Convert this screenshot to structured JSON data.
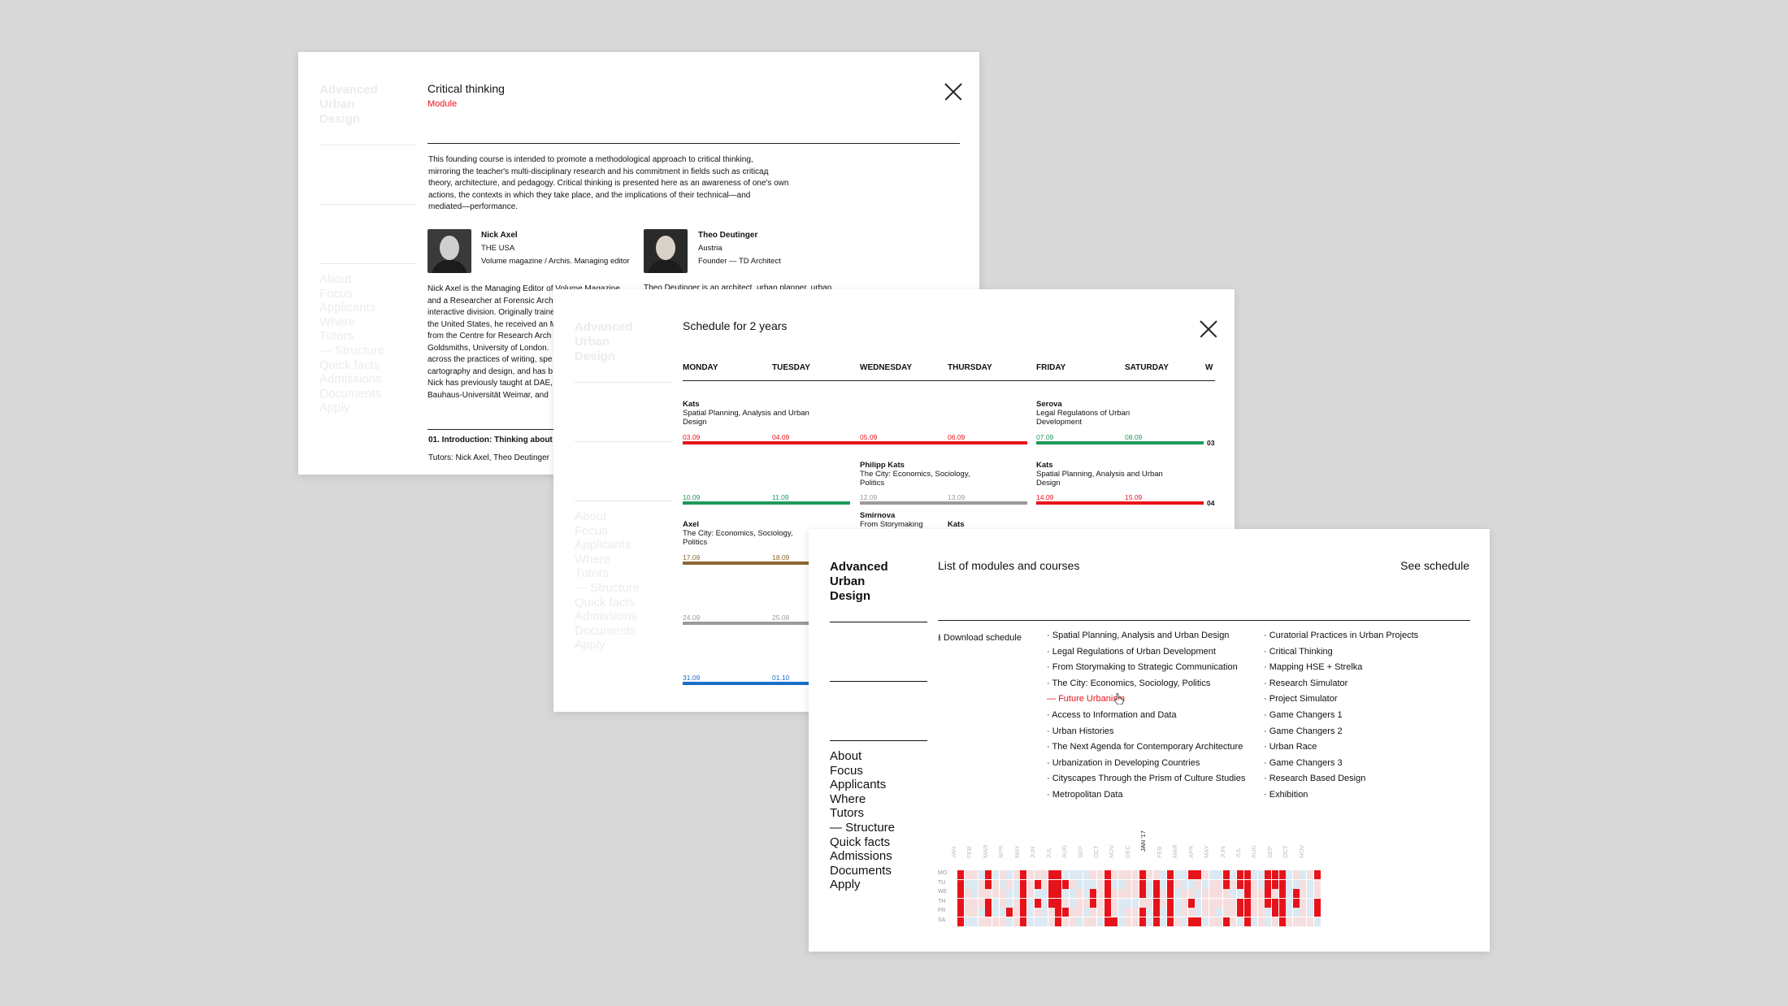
{
  "site": {
    "brand_line1": "Advanced",
    "brand_line2": "Urban",
    "brand_line3": "Design"
  },
  "nav": [
    "About",
    "Focus",
    "Applicants",
    "Where",
    "Tutors",
    "— Structure",
    "Quick facts",
    "Admissions",
    "Documents",
    "Apply"
  ],
  "module_window": {
    "title": "Critical thinking",
    "type": "Module",
    "description": [
      "This founding course is intended to promote a methodological approach to critical thinking,",
      "mirroring the teacher's multi-disciplinary research and his commitment in fields such as criticад",
      "theory, architecture, and pedagogy. Critical thinking is presented here as an awareness of one's own",
      "actions, the contexts in which they take place, and the implications of their technical—and",
      "mediated—performance."
    ],
    "tutors": [
      {
        "name": "Nick Axel",
        "country": "THE USA",
        "role": "Volume magazine / Archis. Managing editor",
        "bio": [
          "Nick Axel is the Managing Editor of Volume Magazine",
          "and a Researcher at Forensic Arch",
          "interactive division. Originally traine",
          "the United States, he received an M",
          "from the Centre for Research Arch",
          "Goldsmiths, University of London. ",
          "across the practices of writing, spe",
          "cartography and design, and has b",
          "Nick has previously taught at DAE,",
          "Bauhaus-Universität Weimar, and"
        ]
      },
      {
        "name": "Theo Deutinger",
        "country": "Austria",
        "role": "Founder — TD Architect",
        "bio": [
          "Theo Deutinger is an architect, urban planner, urban"
        ]
      }
    ],
    "section_title": "01. Introduction: Thinking about",
    "section_tutors": "Tutors: Nick Axel, Theo Deutinger"
  },
  "schedule_window": {
    "title": "Schedule for 2 years",
    "days": [
      "MONDAY",
      "TUESDAY",
      "WEDNESDAY",
      "THURSDAY",
      "FRIDAY",
      "SATURDAY",
      "W"
    ],
    "events": [
      {
        "tutor": "Kats",
        "course": "Spatial Planning, Analysis and Urban Design",
        "dates": [
          "03.09",
          "04.09",
          "05.09",
          "06.09"
        ],
        "color": "#e8121a"
      },
      {
        "tutor": "Serova",
        "course": "Legal Regulations of Urban Development",
        "dates": [
          "07.09",
          "08.09"
        ],
        "color": "#1e9a5a",
        "week": "03"
      },
      {
        "tutor": "Philipp Kats",
        "course": "The City: Economics, Sociology, Politics",
        "dates": [
          "10.09",
          "11.09",
          "12.09",
          "13.09"
        ],
        "color": "#1e9a5a"
      },
      {
        "tutor": "Kats",
        "course": "Spatial Planning, Analysis and Urban Design",
        "dates": [
          "14.09",
          "15.09"
        ],
        "color": "#e8121a",
        "week": "04"
      },
      {
        "tutor": "Axel",
        "course": "The City: Economics, Sociology, Politics",
        "dates": [
          "17.09",
          "18.09"
        ],
        "color": "#8b6a2e"
      },
      {
        "tutor": "Smirnova",
        "course": "From Storymaking",
        "dates": []
      },
      {
        "tutor": "Kats",
        "course": "",
        "dates": []
      },
      {
        "tutor": "",
        "course": "",
        "dates": [
          "24.09",
          "25.09"
        ],
        "color": "#9a9a9a"
      },
      {
        "tutor": "",
        "course": "",
        "dates": [
          "31.09",
          "01.10"
        ],
        "color": "#1a6fc4"
      }
    ]
  },
  "list_window": {
    "title": "List of modules and courses",
    "see_schedule": "See schedule",
    "download": "Download schedule",
    "modules_col1": [
      "Spatial Planning, Analysis and Urban Design",
      "Legal Regulations of Urban Development",
      "From Storymaking to Strategic Communication",
      "The City: Economics, Sociology, Politics",
      "Future Urbanism",
      "Access to Information and Data",
      "Urban Histories",
      "The Next Agenda for Contemporary Architecture",
      "Urbanization in Developing Countries",
      "Cityscapes Through the Prism of Culture Studies",
      "Metropolitan Data"
    ],
    "modules_col2": [
      "Curatorial Practices in Urban Projects",
      "Critical Thinking",
      "Mapping HSE + Strelka",
      "Research Simulator",
      "Project Simulator",
      "Game Changers 1",
      "Game Changers 2",
      "Urban Race",
      "Game Changers 3",
      "Research Based Design",
      "Exhibition"
    ],
    "active_module": "Future Urbanism",
    "heatmap": {
      "months": [
        "JAN",
        "FEB",
        "MAR",
        "APR",
        "MAY",
        "JUN",
        "JUL",
        "AUG",
        "SEP",
        "OCT",
        "NOV",
        "DEC",
        "JAN '17",
        "FEB",
        "MAR",
        "APR",
        "MAY",
        "JUN",
        "JUL",
        "AUG",
        "SEP",
        "OCT",
        "NOV"
      ],
      "days": [
        "MO",
        "TU",
        "WE",
        "TH",
        "FR",
        "SA"
      ],
      "colors": {
        "busy": "#e8121a",
        "free": "#dbe9f3",
        "light": "#f6dede"
      }
    }
  }
}
